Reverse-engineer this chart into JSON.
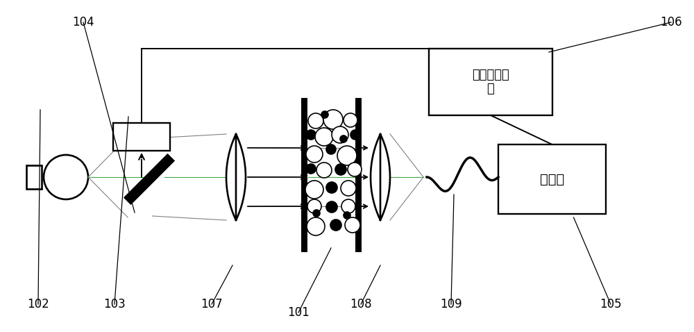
{
  "bg_color": "#ffffff",
  "line_color": "#000000",
  "text_signal": "信号处理电\n路",
  "text_spectrometer": "光谱仪",
  "fig_width": 10.0,
  "fig_height": 4.78,
  "labels": [
    "102",
    "103",
    "104",
    "105",
    "106",
    "107",
    "108",
    "101",
    "109"
  ]
}
